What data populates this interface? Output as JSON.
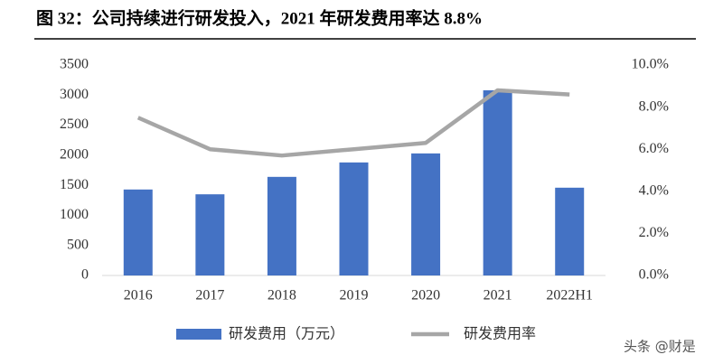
{
  "chart_data": {
    "type": "bar",
    "title": "图 32：公司持续进行研发投入，2021 年研发费用率达 8.8%",
    "categories": [
      "2016",
      "2017",
      "2018",
      "2019",
      "2020",
      "2021",
      "2022H1"
    ],
    "series": [
      {
        "name": "研发费用（万元）",
        "color": "#4472c4",
        "type": "bar",
        "values": [
          1430,
          1350,
          1640,
          1880,
          2030,
          3080,
          1460
        ]
      },
      {
        "name": "研发费用率",
        "color": "#a6a6a6",
        "type": "line",
        "axis": "y2",
        "values": [
          7.5,
          6.0,
          5.7,
          6.0,
          6.3,
          8.8,
          8.6
        ]
      }
    ],
    "ylim": [
      0,
      3500
    ],
    "yticks": [
      0,
      500,
      1000,
      1500,
      2000,
      2500,
      3000,
      3500
    ],
    "y2lim": [
      0,
      10
    ],
    "y2ticks": [
      {
        "value": 0,
        "label": "0.0%"
      },
      {
        "value": 2,
        "label": "2.0%"
      },
      {
        "value": 4,
        "label": "4.0%"
      },
      {
        "value": 6,
        "label": "6.0%"
      },
      {
        "value": 8,
        "label": "8.0%"
      },
      {
        "value": 10,
        "label": "10.0%"
      }
    ],
    "grid": false,
    "legend": "bottom",
    "watermark": "头条 @财是"
  }
}
